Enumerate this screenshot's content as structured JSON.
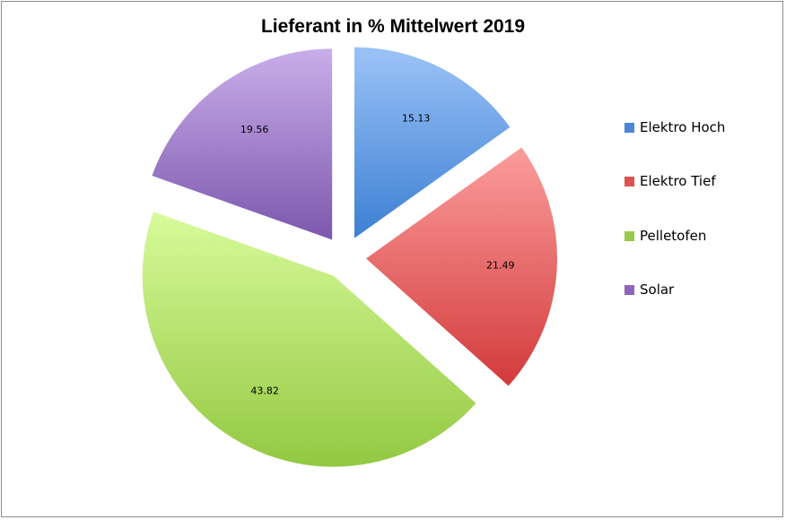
{
  "chart_data": {
    "type": "pie",
    "title": "Lieferant in % Mittelwert 2019",
    "categories": [
      "Elektro Hoch",
      "Elektro Tief",
      "Pelletofen",
      "Solar"
    ],
    "values": [
      15.13,
      21.49,
      43.82,
      19.56
    ],
    "data_labels": [
      "15.13",
      "21.49",
      "43.82",
      "19.56"
    ],
    "colors": [
      {
        "light": "#9bc3f7",
        "dark": "#3c7fd3",
        "swatch": "#4a86d5"
      },
      {
        "light": "#fb9d9c",
        "dark": "#d23b3b",
        "swatch": "#de5252"
      },
      {
        "light": "#d7fb9a",
        "dark": "#93c842",
        "swatch": "#97c94b"
      },
      {
        "light": "#c9aeea",
        "dark": "#7c57ad",
        "swatch": "#8b66bb"
      }
    ],
    "exploded": true,
    "legend_position": "right"
  }
}
